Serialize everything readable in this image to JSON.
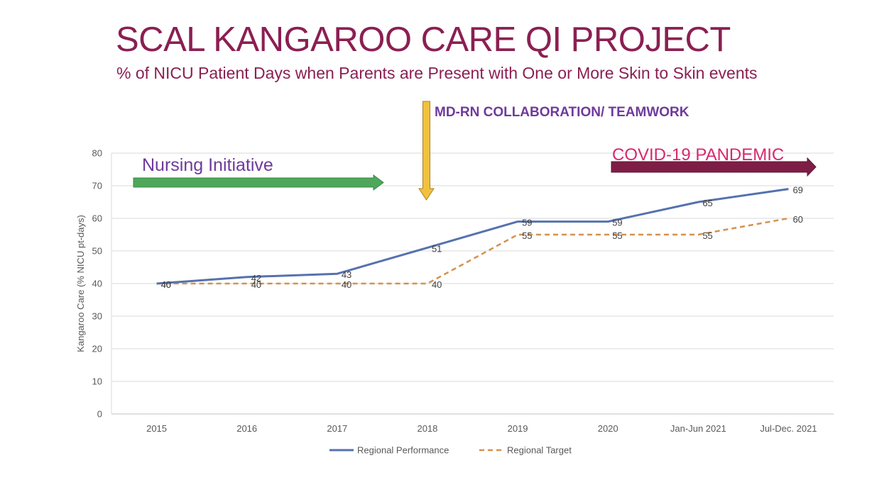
{
  "header": {
    "title": "SCAL KANGAROO CARE QI PROJECT",
    "subtitle": "% of NICU Patient Days when Parents are Present with One or More Skin to Skin events"
  },
  "annotations": {
    "nursing": "Nursing Initiative",
    "mdrn": "MD-RN COLLABORATION/ TEAMWORK",
    "covid": "COVID-19 PANDEMIC"
  },
  "colors": {
    "title": "#8b1f52",
    "performance": "#5572ae",
    "target": "#d4914e",
    "nursing_arrow": "#4ea75a",
    "mdrn_arrow": "#f2c13c",
    "covid_arrow": "#7e1e47"
  },
  "chart_data": {
    "type": "line",
    "categories": [
      "2015",
      "2016",
      "2017",
      "2018",
      "2019",
      "2020",
      "Jan-Jun 2021",
      "Jul-Dec. 2021"
    ],
    "series": [
      {
        "name": "Regional Performance",
        "values": [
          40,
          42,
          43,
          51,
          59,
          59,
          65,
          69
        ],
        "style": "solid"
      },
      {
        "name": "Regional Target",
        "values": [
          40,
          40,
          40,
          40,
          55,
          55,
          55,
          60
        ],
        "style": "dashed"
      }
    ],
    "ylabel": "Kangaroo Care (% NICU pt-days)",
    "ylim": [
      0,
      80
    ],
    "yticks": [
      "0",
      "10",
      "20",
      "30",
      "40",
      "50",
      "60",
      "70",
      "80"
    ],
    "grid": true,
    "legend": "bottom"
  }
}
